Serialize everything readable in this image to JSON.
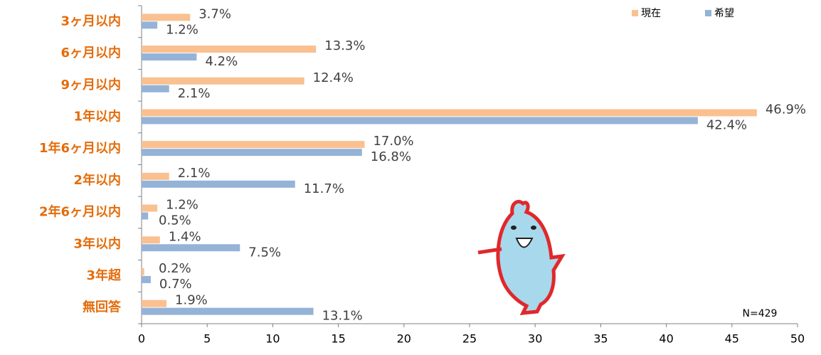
{
  "chart_data": {
    "type": "hbar",
    "categories": [
      "3ヶ月以内",
      "6ヶ月以内",
      "9ヶ月以内",
      "1年以内",
      "1年6ヶ月以内",
      "2年以内",
      "2年6ヶ月以内",
      "3年以内",
      "3年超",
      "無回答"
    ],
    "series": [
      {
        "name": "現在",
        "color": "#fac090",
        "values": [
          3.7,
          13.3,
          12.4,
          46.9,
          17.0,
          2.1,
          1.2,
          1.4,
          0.2,
          1.9
        ],
        "value_labels": [
          "3.7%",
          "13.3%",
          "12.4%",
          "46.9%",
          "17.0%",
          "2.1%",
          "1.2%",
          "1.4%",
          "0.2%",
          "1.9%"
        ]
      },
      {
        "name": "希望",
        "color": "#95b3d7",
        "values": [
          1.2,
          4.2,
          2.1,
          42.4,
          16.8,
          11.7,
          0.5,
          7.5,
          0.7,
          13.1
        ],
        "value_labels": [
          "1.2%",
          "4.2%",
          "2.1%",
          "42.4%",
          "16.8%",
          "11.7%",
          "0.5%",
          "7.5%",
          "0.7%",
          "13.1%"
        ]
      }
    ],
    "xlim": [
      0,
      50
    ],
    "xticks": [
      0,
      5,
      10,
      15,
      20,
      25,
      30,
      35,
      40,
      45,
      50
    ],
    "legend": "top-right",
    "annotation": "N=429"
  }
}
